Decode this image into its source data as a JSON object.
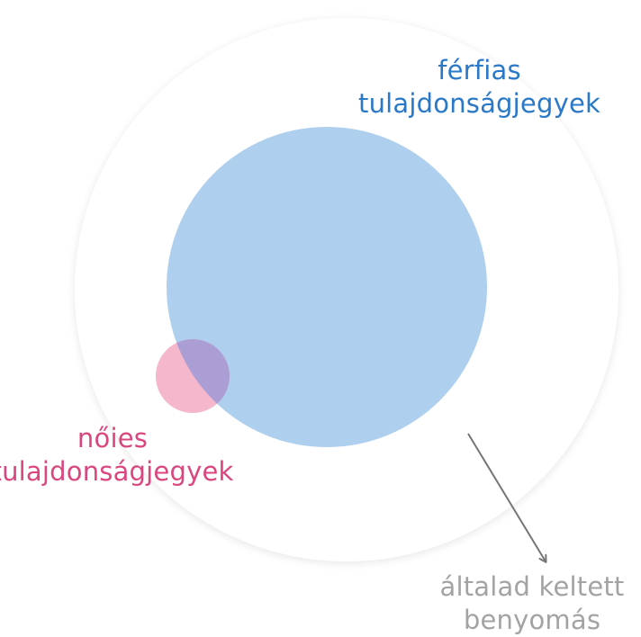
{
  "labels": {
    "masculine": {
      "line1": "férfias",
      "line2": "tulajdonságjegyek"
    },
    "feminine": {
      "line1": "nőies",
      "line2": "tulajdonságjegyek"
    },
    "impression": {
      "line1": "általad keltett",
      "line2": "benyomás"
    }
  },
  "colors": {
    "background": "#ffffff",
    "outer_circle": "#ffffff",
    "masculine_circle": "#aecfee",
    "feminine_circle": "#f5b7cb",
    "overlap": "#ab9ed4",
    "masculine_text": "#2a78c8",
    "feminine_text": "#d9477e",
    "impression_text": "#a3a3a3",
    "arrow": "#757575"
  }
}
